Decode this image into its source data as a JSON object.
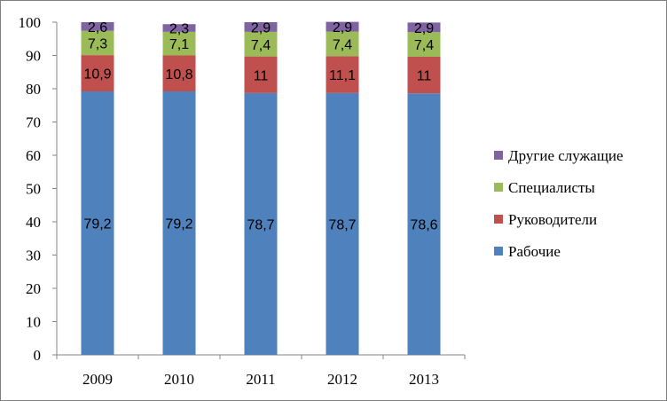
{
  "chart_data": {
    "type": "bar",
    "stacked": true,
    "categories": [
      "2009",
      "2010",
      "2011",
      "2012",
      "2013"
    ],
    "series": [
      {
        "name": "Рабочие",
        "color": "#4f81bd",
        "values": [
          79.2,
          79.2,
          78.7,
          78.7,
          78.6
        ],
        "labels": [
          "79,2",
          "79,2",
          "78,7",
          "78,7",
          "78,6"
        ]
      },
      {
        "name": "Руководители",
        "color": "#c0504d",
        "values": [
          10.9,
          10.8,
          11,
          11.1,
          11
        ],
        "labels": [
          "10,9",
          "10,8",
          "11",
          "11,1",
          "11"
        ]
      },
      {
        "name": "Специалисты",
        "color": "#9bbb59",
        "values": [
          7.3,
          7.1,
          7.4,
          7.4,
          7.4
        ],
        "labels": [
          "7,3",
          "7,1",
          "7,4",
          "7,4",
          "7,4"
        ]
      },
      {
        "name": "Другие служащие",
        "color": "#8064a2",
        "values": [
          2.6,
          2.3,
          2.9,
          2.9,
          2.9
        ],
        "labels": [
          "2,6",
          "2,3",
          "2,9",
          "2,9",
          "2,9"
        ]
      }
    ],
    "ylim": [
      0,
      100
    ],
    "yticks": [
      "0",
      "10",
      "20",
      "30",
      "40",
      "50",
      "60",
      "70",
      "80",
      "90",
      "100"
    ],
    "grid": false,
    "legend_position": "right",
    "title": "",
    "xlabel": "",
    "ylabel": ""
  }
}
